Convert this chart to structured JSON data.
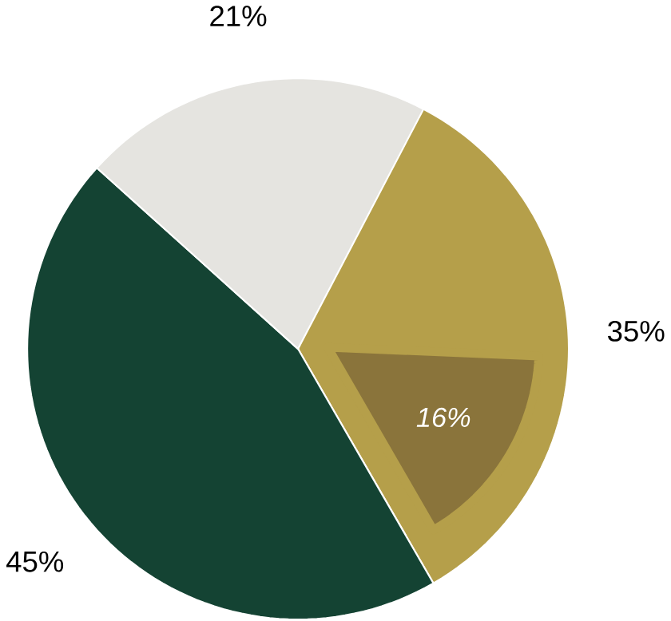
{
  "chart_data": {
    "type": "pie",
    "categories": [
      null,
      null,
      null
    ],
    "series": [
      {
        "values": [
          35,
          45,
          21
        ],
        "colors": [
          "#b59f4a",
          "#144333",
          "#e5e4e0"
        ],
        "value_labels": [
          "35%",
          "45%",
          "21%"
        ]
      },
      {
        "values": [
          16,
          null,
          null
        ],
        "color": "#8a743b",
        "value_labels": [
          "16%",
          null,
          null
        ]
      }
    ]
  }
}
